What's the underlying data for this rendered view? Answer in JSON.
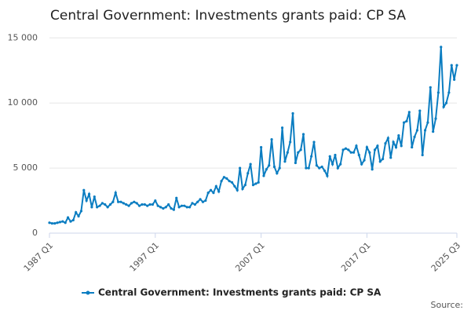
{
  "chart_data": {
    "type": "line",
    "title": "Central Government: Investments grants paid: CP SA",
    "source": "Source:",
    "categories": [
      "1987 Q1",
      null,
      null,
      null,
      null,
      null,
      null,
      null,
      null,
      null,
      null,
      null,
      null,
      null,
      null,
      null,
      null,
      null,
      null,
      null,
      null,
      null,
      null,
      null,
      null,
      null,
      null,
      null,
      null,
      null,
      null,
      null,
      null,
      null,
      null,
      null,
      null,
      null,
      null,
      null,
      "1997 Q1",
      null,
      null,
      null,
      null,
      null,
      null,
      null,
      null,
      null,
      null,
      null,
      null,
      null,
      null,
      null,
      null,
      null,
      null,
      null,
      null,
      null,
      null,
      null,
      null,
      null,
      null,
      null,
      null,
      null,
      null,
      null,
      null,
      null,
      null,
      null,
      null,
      null,
      null,
      null,
      "2007 Q1",
      null,
      null,
      null,
      null,
      null,
      null,
      null,
      null,
      null,
      null,
      null,
      null,
      null,
      null,
      null,
      null,
      null,
      null,
      null,
      null,
      null,
      null,
      null,
      null,
      null,
      null,
      null,
      null,
      null,
      null,
      null,
      null,
      null,
      null,
      null,
      null,
      null,
      null,
      null,
      "2017 Q1",
      null,
      null,
      null,
      null,
      null,
      null,
      null,
      null,
      null,
      null,
      null,
      null,
      null,
      null,
      null,
      null,
      null,
      null,
      null,
      null,
      null,
      null,
      null,
      null,
      null,
      null,
      null,
      null,
      null,
      null,
      null,
      null,
      null,
      "2025 Q3"
    ],
    "series": [
      {
        "name": "Central Government: Investments grants paid: CP SA",
        "color": "#0b7dc1",
        "values": [
          800,
          750,
          750,
          800,
          850,
          900,
          800,
          1200,
          900,
          1000,
          1600,
          1300,
          1700,
          3300,
          2500,
          3000,
          2000,
          2800,
          2000,
          2100,
          2300,
          2200,
          2000,
          2200,
          2400,
          3100,
          2400,
          2400,
          2300,
          2200,
          2100,
          2300,
          2400,
          2300,
          2100,
          2200,
          2200,
          2100,
          2200,
          2200,
          2500,
          2100,
          2000,
          1900,
          2000,
          2200,
          1900,
          1800,
          2700,
          2000,
          2100,
          2100,
          2000,
          2000,
          2300,
          2200,
          2400,
          2600,
          2400,
          2500,
          3100,
          3300,
          3100,
          3600,
          3200,
          4000,
          4300,
          4200,
          4000,
          3900,
          3600,
          3300,
          5000,
          3400,
          3700,
          4600,
          5300,
          3700,
          3800,
          3900,
          6600,
          4400,
          4900,
          5200,
          7200,
          5100,
          4600,
          5000,
          8100,
          5500,
          6200,
          7000,
          9200,
          5400,
          6200,
          6400,
          7600,
          5000,
          5000,
          5900,
          7000,
          5200,
          5000,
          5100,
          4800,
          4400,
          5900,
          5300,
          6000,
          5000,
          5300,
          6400,
          6500,
          6400,
          6200,
          6200,
          6700,
          6000,
          5300,
          5600,
          6600,
          6200,
          4900,
          6400,
          6700,
          5500,
          5700,
          6900,
          7300,
          5800,
          7000,
          6600,
          7500,
          6700,
          8500,
          8600,
          9300,
          6600,
          7400,
          7900,
          9400,
          6000,
          7900,
          8500,
          11200,
          7800,
          8800,
          10800,
          14300,
          9700,
          10000,
          10800,
          12900,
          11800,
          12900
        ]
      }
    ],
    "ylim": [
      0,
      15500
    ],
    "yticks": [
      0,
      {
        "value": 5000,
        "label": "5 000"
      },
      {
        "value": 10000,
        "label": "10 000"
      },
      {
        "value": 15000,
        "label": "15 000"
      }
    ],
    "grid": true,
    "legend": "bottom"
  }
}
